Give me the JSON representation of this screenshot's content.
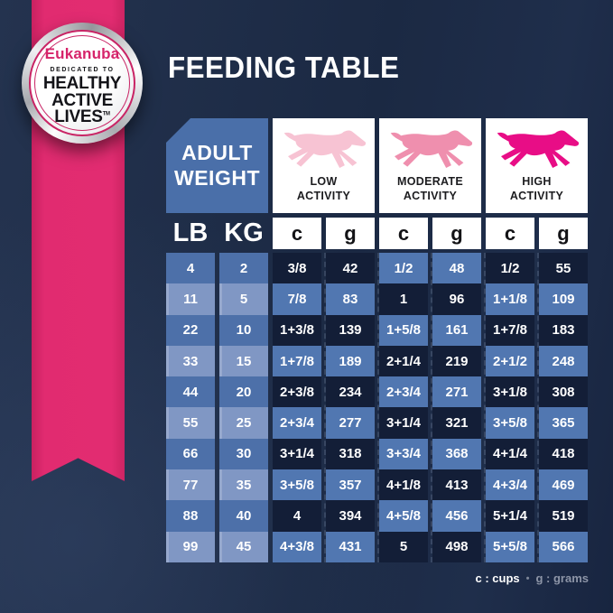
{
  "badge": {
    "brand": "Eukanuba",
    "dedicated": "DEDICATED TO",
    "lines": [
      "HEALTHY",
      "ACTIVE",
      "LIVES"
    ],
    "tm": "TM"
  },
  "title": "FEEDING TABLE",
  "table": {
    "corner": {
      "line1": "ADULT",
      "line2": "WEIGHT"
    },
    "weight_cols": [
      "LB",
      "KG"
    ],
    "activities": [
      {
        "line1": "LOW",
        "line2": "ACTIVITY",
        "dog_color": "#f7c3d3"
      },
      {
        "line1": "MODERATE",
        "line2": "ACTIVITY",
        "dog_color": "#ef8fae"
      },
      {
        "line1": "HIGH",
        "line2": "ACTIVITY",
        "dog_color": "#e80d86"
      }
    ],
    "unit_cols": [
      "c",
      "g",
      "c",
      "g",
      "c",
      "g"
    ],
    "rows": [
      {
        "lb": "4",
        "kg": "2",
        "cells": [
          "3/8",
          "42",
          "1/2",
          "48",
          "1/2",
          "55"
        ]
      },
      {
        "lb": "11",
        "kg": "5",
        "cells": [
          "7/8",
          "83",
          "1",
          "96",
          "1+1/8",
          "109"
        ]
      },
      {
        "lb": "22",
        "kg": "10",
        "cells": [
          "1+3/8",
          "139",
          "1+5/8",
          "161",
          "1+7/8",
          "183"
        ]
      },
      {
        "lb": "33",
        "kg": "15",
        "cells": [
          "1+7/8",
          "189",
          "2+1/4",
          "219",
          "2+1/2",
          "248"
        ]
      },
      {
        "lb": "44",
        "kg": "20",
        "cells": [
          "2+3/8",
          "234",
          "2+3/4",
          "271",
          "3+1/8",
          "308"
        ]
      },
      {
        "lb": "55",
        "kg": "25",
        "cells": [
          "2+3/4",
          "277",
          "3+1/4",
          "321",
          "3+5/8",
          "365"
        ]
      },
      {
        "lb": "66",
        "kg": "30",
        "cells": [
          "3+1/4",
          "318",
          "3+3/4",
          "368",
          "4+1/4",
          "418"
        ]
      },
      {
        "lb": "77",
        "kg": "35",
        "cells": [
          "3+5/8",
          "357",
          "4+1/8",
          "413",
          "4+3/4",
          "469"
        ]
      },
      {
        "lb": "88",
        "kg": "40",
        "cells": [
          "4",
          "394",
          "4+5/8",
          "456",
          "5+1/4",
          "519"
        ]
      },
      {
        "lb": "99",
        "kg": "45",
        "cells": [
          "4+3/8",
          "431",
          "5",
          "498",
          "5+5/8",
          "566"
        ]
      }
    ]
  },
  "legend": {
    "cups": "c : cups",
    "separator": "•",
    "grams": "g : grams"
  },
  "colors": {
    "background": "#1d2b47",
    "ribbon_pink": "#e12b70",
    "brand_pink": "#d6246a",
    "header_blue": "#4a6fa9",
    "cell_dark": "#131e37",
    "cell_blue": "#5177b1",
    "cell_weight_blue": "#4d70a9",
    "cell_weight_light": "#8097c4",
    "dog_low": "#f7c3d3",
    "dog_moderate": "#ef8fae",
    "dog_high": "#e80d86"
  },
  "chart_data": {
    "type": "table",
    "title": "FEEDING TABLE",
    "columns": [
      "Adult Weight LB",
      "Adult Weight KG",
      "Low Activity c",
      "Low Activity g",
      "Moderate Activity c",
      "Moderate Activity g",
      "High Activity c",
      "High Activity g"
    ],
    "rows": [
      [
        "4",
        "2",
        "3/8",
        "42",
        "1/2",
        "48",
        "1/2",
        "55"
      ],
      [
        "11",
        "5",
        "7/8",
        "83",
        "1",
        "96",
        "1+1/8",
        "109"
      ],
      [
        "22",
        "10",
        "1+3/8",
        "139",
        "1+5/8",
        "161",
        "1+7/8",
        "183"
      ],
      [
        "33",
        "15",
        "1+7/8",
        "189",
        "2+1/4",
        "219",
        "2+1/2",
        "248"
      ],
      [
        "44",
        "20",
        "2+3/8",
        "234",
        "2+3/4",
        "271",
        "3+1/8",
        "308"
      ],
      [
        "55",
        "25",
        "2+3/4",
        "277",
        "3+1/4",
        "321",
        "3+5/8",
        "365"
      ],
      [
        "66",
        "30",
        "3+1/4",
        "318",
        "3+3/4",
        "368",
        "4+1/4",
        "418"
      ],
      [
        "77",
        "35",
        "3+5/8",
        "357",
        "4+1/8",
        "413",
        "4+3/4",
        "469"
      ],
      [
        "88",
        "40",
        "4",
        "394",
        "4+5/8",
        "456",
        "5+1/4",
        "519"
      ],
      [
        "99",
        "45",
        "4+3/8",
        "431",
        "5",
        "498",
        "5+5/8",
        "566"
      ]
    ],
    "units_note": "c : cups • g : grams"
  }
}
